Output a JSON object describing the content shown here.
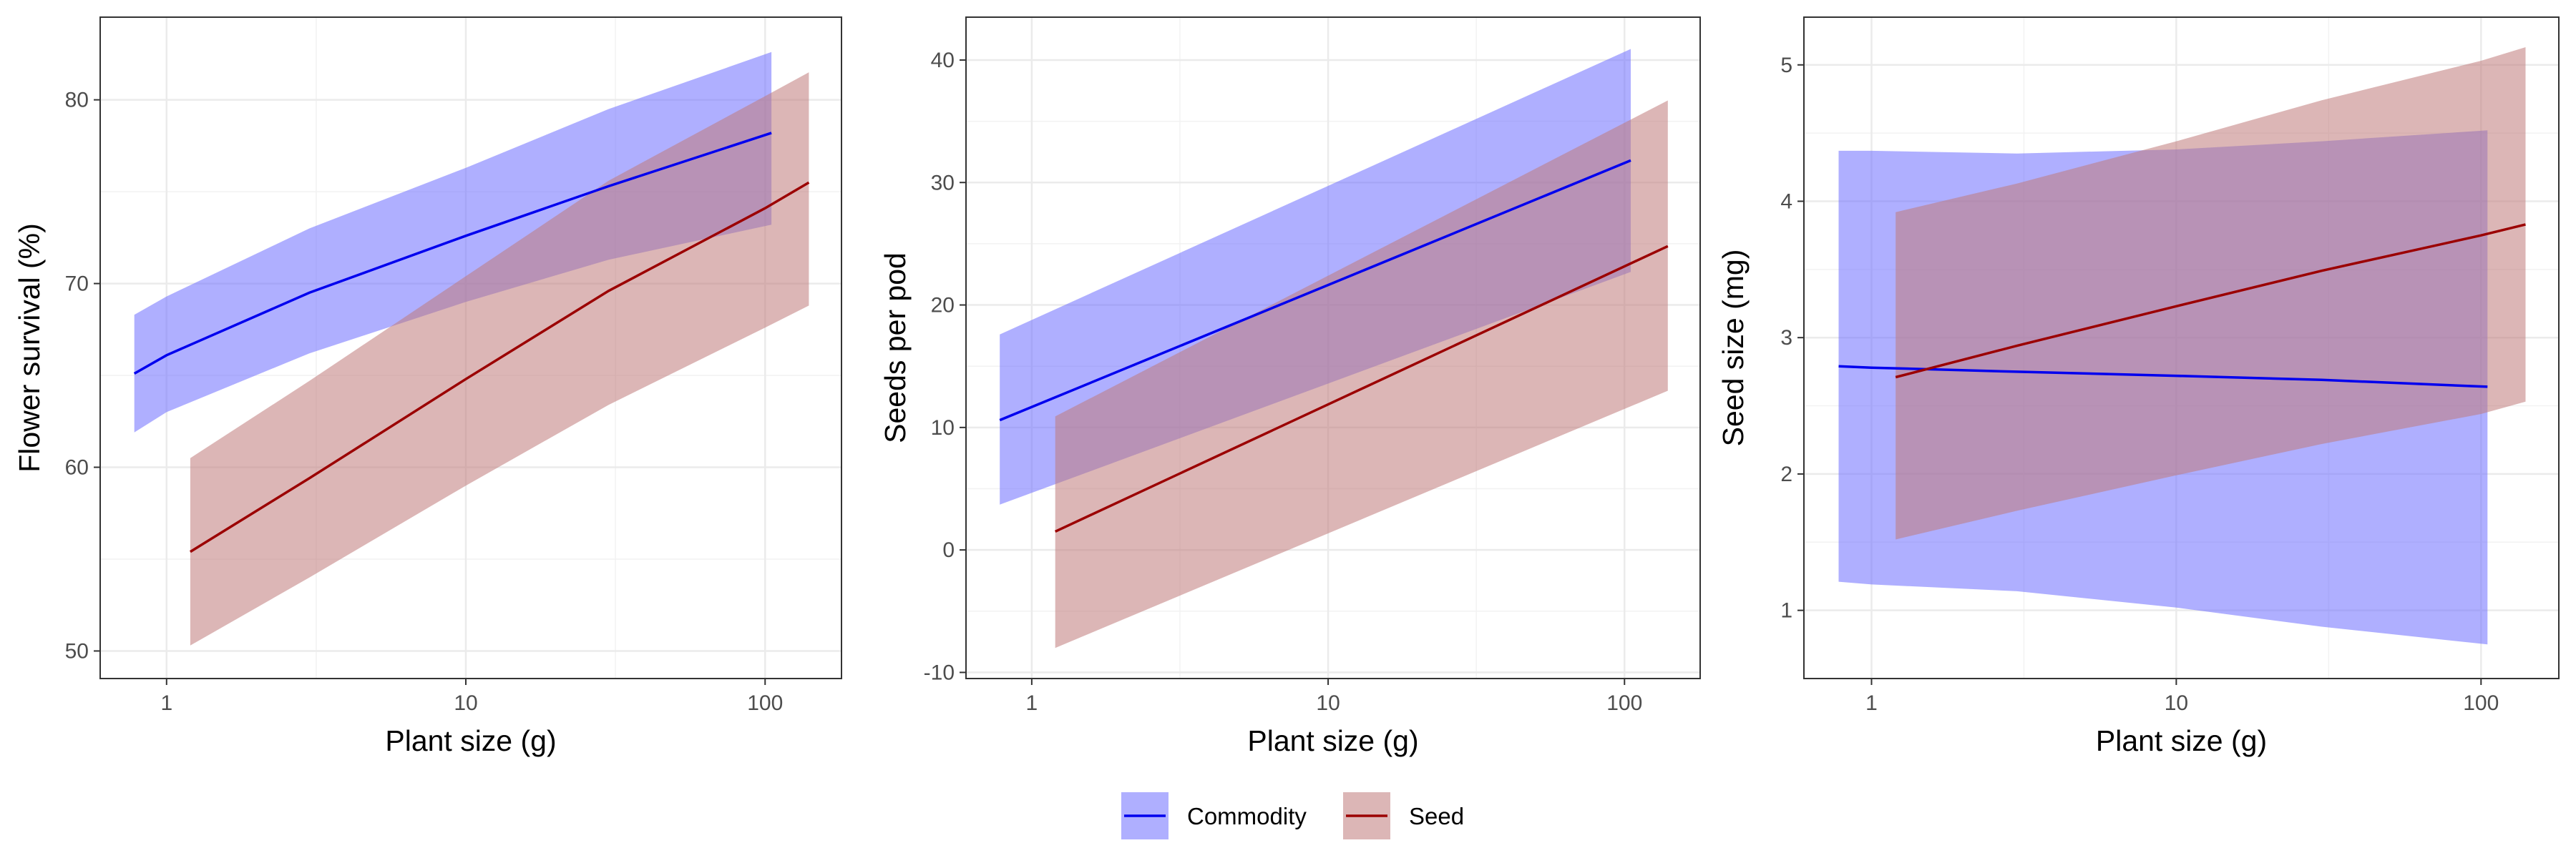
{
  "chart_data": [
    {
      "type": "line",
      "xlabel": "Plant size (g)",
      "ylabel": "Flower survival (%)",
      "xscale": "log",
      "xlim": [
        0.6,
        180
      ],
      "ylim": [
        48.5,
        84.5
      ],
      "xticks": [
        1,
        10,
        100
      ],
      "xtick_labels": [
        "1",
        "10",
        "100"
      ],
      "yticks": [
        50,
        60,
        70,
        80
      ],
      "ytick_labels": [
        "50",
        "60",
        "70",
        "80"
      ],
      "grid": true,
      "series": [
        {
          "name": "Commodity",
          "color": "#0000ee",
          "fill": "#6e6eff",
          "x": [
            0.78,
            1,
            3,
            10,
            30,
            105
          ],
          "y": [
            65.1,
            66.1,
            69.5,
            72.6,
            75.3,
            78.2
          ],
          "lower": [
            61.9,
            63.0,
            66.2,
            69.0,
            71.3,
            73.2
          ],
          "upper": [
            68.3,
            69.3,
            73.0,
            76.3,
            79.5,
            82.6
          ]
        },
        {
          "name": "Seed",
          "color": "#9b0000",
          "fill": "#c07a7a",
          "x": [
            1.2,
            3,
            10,
            30,
            100,
            140
          ],
          "y": [
            55.4,
            59.4,
            64.8,
            69.6,
            74.1,
            75.5
          ],
          "lower": [
            50.3,
            54.0,
            59.0,
            63.4,
            67.6,
            68.8
          ],
          "upper": [
            60.5,
            64.7,
            70.4,
            75.6,
            80.2,
            81.5
          ]
        }
      ]
    },
    {
      "type": "line",
      "xlabel": "Plant size (g)",
      "ylabel": "Seeds per pod",
      "xscale": "log",
      "xlim": [
        0.6,
        180
      ],
      "ylim": [
        -10.5,
        43.5
      ],
      "xticks": [
        1,
        10,
        100
      ],
      "xtick_labels": [
        "1",
        "10",
        "100"
      ],
      "yticks": [
        -10,
        0,
        10,
        20,
        30,
        40
      ],
      "ytick_labels": [
        "-10",
        "0",
        "10",
        "20",
        "30",
        "40"
      ],
      "grid": true,
      "series": [
        {
          "name": "Commodity",
          "color": "#0000ee",
          "fill": "#6e6eff",
          "x": [
            0.78,
            105
          ],
          "y": [
            10.6,
            31.8
          ],
          "lower": [
            3.7,
            22.7
          ],
          "upper": [
            17.6,
            40.9
          ]
        },
        {
          "name": "Seed",
          "color": "#9b0000",
          "fill": "#c07a7a",
          "x": [
            1.2,
            140
          ],
          "y": [
            1.5,
            24.8
          ],
          "lower": [
            -8.0,
            13.0
          ],
          "upper": [
            10.9,
            36.7
          ]
        }
      ]
    },
    {
      "type": "line",
      "xlabel": "Plant size (g)",
      "ylabel": "Seed size (mg)",
      "xscale": "log",
      "xlim": [
        0.6,
        180
      ],
      "ylim": [
        0.5,
        5.35
      ],
      "xticks": [
        1,
        10,
        100
      ],
      "xtick_labels": [
        "1",
        "10",
        "100"
      ],
      "yticks": [
        1,
        2,
        3,
        4,
        5
      ],
      "ytick_labels": [
        "1",
        "2",
        "3",
        "4",
        "5"
      ],
      "grid": true,
      "series": [
        {
          "name": "Commodity",
          "color": "#0000ee",
          "fill": "#6e6eff",
          "x": [
            0.78,
            1,
            3,
            10,
            30,
            105
          ],
          "y": [
            2.79,
            2.78,
            2.75,
            2.72,
            2.69,
            2.64
          ],
          "lower": [
            1.21,
            1.19,
            1.14,
            1.02,
            0.88,
            0.75
          ],
          "upper": [
            4.37,
            4.37,
            4.35,
            4.38,
            4.44,
            4.52
          ]
        },
        {
          "name": "Seed",
          "color": "#9b0000",
          "fill": "#c07a7a",
          "x": [
            1.2,
            3,
            10,
            30,
            100,
            140
          ],
          "y": [
            2.71,
            2.94,
            3.23,
            3.49,
            3.75,
            3.83
          ],
          "lower": [
            1.52,
            1.73,
            1.99,
            2.22,
            2.44,
            2.53
          ],
          "upper": [
            3.92,
            4.13,
            4.44,
            4.74,
            5.03,
            5.13
          ]
        }
      ]
    }
  ],
  "legend": {
    "position": "bottom",
    "items": [
      {
        "label": "Commodity",
        "color": "#0000ee",
        "fill": "#6e6eff"
      },
      {
        "label": "Seed",
        "color": "#9b0000",
        "fill": "#c07a7a"
      }
    ]
  }
}
